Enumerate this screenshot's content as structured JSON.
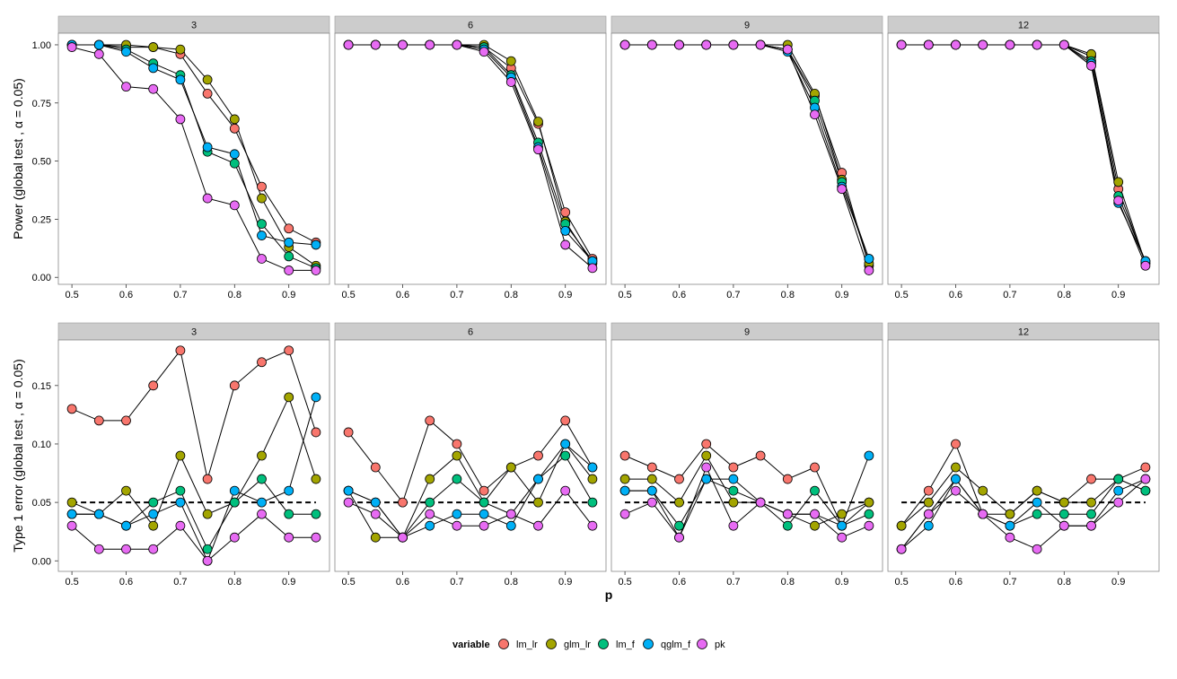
{
  "colors": {
    "lm_lr": "#F8766D",
    "glm_lr": "#A3A500",
    "lm_f": "#00BF7D",
    "qglm_f": "#00B0F6",
    "pk": "#E76BF3",
    "strip": "#cccccc"
  },
  "legend": {
    "title": "variable",
    "items": [
      {
        "key": "lm_lr",
        "label": "lm_lr"
      },
      {
        "key": "glm_lr",
        "label": "glm_lr"
      },
      {
        "key": "lm_f",
        "label": "lm_f"
      },
      {
        "key": "qglm_f",
        "label": "qglm_f"
      },
      {
        "key": "pk",
        "label": "pk"
      }
    ]
  },
  "xlabel": "p",
  "chart_data": [
    {
      "type": "line",
      "row": "power",
      "ylabel": "Power (global test , α = 0.05)",
      "ylim": [
        -0.03,
        1.05
      ],
      "yticks": [
        0.0,
        0.25,
        0.5,
        0.75,
        1.0
      ],
      "ytick_labels": [
        "0.00",
        "0.25",
        "0.50",
        "0.75",
        "1.00"
      ],
      "xlim": [
        0.475,
        0.975
      ],
      "xticks": [
        0.5,
        0.6,
        0.7,
        0.8,
        0.9
      ],
      "xtick_labels": [
        "0.5",
        "0.6",
        "0.7",
        "0.8",
        "0.9"
      ],
      "x": [
        0.5,
        0.55,
        0.6,
        0.65,
        0.7,
        0.75,
        0.8,
        0.85,
        0.9,
        0.95
      ],
      "reference_line": null,
      "panels": [
        {
          "strip": "3",
          "series": [
            {
              "name": "lm_lr",
              "values": [
                1.0,
                1.0,
                0.99,
                0.99,
                0.96,
                0.79,
                0.64,
                0.39,
                0.21,
                0.15
              ]
            },
            {
              "name": "glm_lr",
              "values": [
                1.0,
                1.0,
                1.0,
                0.99,
                0.98,
                0.85,
                0.68,
                0.34,
                0.13,
                0.05
              ]
            },
            {
              "name": "lm_f",
              "values": [
                1.0,
                1.0,
                0.98,
                0.92,
                0.87,
                0.54,
                0.49,
                0.23,
                0.09,
                0.04
              ]
            },
            {
              "name": "qglm_f",
              "values": [
                1.0,
                1.0,
                0.97,
                0.9,
                0.85,
                0.56,
                0.53,
                0.18,
                0.15,
                0.14
              ]
            },
            {
              "name": "pk",
              "values": [
                0.99,
                0.96,
                0.82,
                0.81,
                0.68,
                0.34,
                0.31,
                0.08,
                0.03,
                0.03
              ]
            }
          ]
        },
        {
          "strip": "6",
          "series": [
            {
              "name": "lm_lr",
              "values": [
                1.0,
                1.0,
                1.0,
                1.0,
                1.0,
                0.99,
                0.9,
                0.66,
                0.28,
                0.08
              ]
            },
            {
              "name": "glm_lr",
              "values": [
                1.0,
                1.0,
                1.0,
                1.0,
                1.0,
                1.0,
                0.93,
                0.67,
                0.24,
                0.06
              ]
            },
            {
              "name": "lm_f",
              "values": [
                1.0,
                1.0,
                1.0,
                1.0,
                1.0,
                0.99,
                0.87,
                0.58,
                0.23,
                0.07
              ]
            },
            {
              "name": "qglm_f",
              "values": [
                1.0,
                1.0,
                1.0,
                1.0,
                1.0,
                0.98,
                0.86,
                0.56,
                0.2,
                0.07
              ]
            },
            {
              "name": "pk",
              "values": [
                1.0,
                1.0,
                1.0,
                1.0,
                1.0,
                0.97,
                0.84,
                0.55,
                0.14,
                0.04
              ]
            }
          ]
        },
        {
          "strip": "9",
          "series": [
            {
              "name": "lm_lr",
              "values": [
                1.0,
                1.0,
                1.0,
                1.0,
                1.0,
                1.0,
                0.98,
                0.78,
                0.45,
                0.05
              ]
            },
            {
              "name": "glm_lr",
              "values": [
                1.0,
                1.0,
                1.0,
                1.0,
                1.0,
                1.0,
                1.0,
                0.79,
                0.42,
                0.06
              ]
            },
            {
              "name": "lm_f",
              "values": [
                1.0,
                1.0,
                1.0,
                1.0,
                1.0,
                1.0,
                0.98,
                0.76,
                0.41,
                0.08
              ]
            },
            {
              "name": "qglm_f",
              "values": [
                1.0,
                1.0,
                1.0,
                1.0,
                1.0,
                1.0,
                0.97,
                0.73,
                0.39,
                0.08
              ]
            },
            {
              "name": "pk",
              "values": [
                1.0,
                1.0,
                1.0,
                1.0,
                1.0,
                1.0,
                0.98,
                0.7,
                0.38,
                0.03
              ]
            }
          ]
        },
        {
          "strip": "12",
          "series": [
            {
              "name": "lm_lr",
              "values": [
                1.0,
                1.0,
                1.0,
                1.0,
                1.0,
                1.0,
                1.0,
                0.95,
                0.38,
                0.06
              ]
            },
            {
              "name": "glm_lr",
              "values": [
                1.0,
                1.0,
                1.0,
                1.0,
                1.0,
                1.0,
                1.0,
                0.96,
                0.41,
                0.06
              ]
            },
            {
              "name": "lm_f",
              "values": [
                1.0,
                1.0,
                1.0,
                1.0,
                1.0,
                1.0,
                1.0,
                0.93,
                0.35,
                0.07
              ]
            },
            {
              "name": "qglm_f",
              "values": [
                1.0,
                1.0,
                1.0,
                1.0,
                1.0,
                1.0,
                1.0,
                0.92,
                0.32,
                0.07
              ]
            },
            {
              "name": "pk",
              "values": [
                1.0,
                1.0,
                1.0,
                1.0,
                1.0,
                1.0,
                1.0,
                0.91,
                0.33,
                0.05
              ]
            }
          ]
        }
      ]
    },
    {
      "type": "line",
      "row": "type1",
      "ylabel": "Type 1 error (global test , α = 0.05)",
      "ylim": [
        -0.009,
        0.189
      ],
      "yticks": [
        0.0,
        0.05,
        0.1,
        0.15
      ],
      "ytick_labels": [
        "0.00",
        "0.05",
        "0.10",
        "0.15"
      ],
      "xlim": [
        0.475,
        0.975
      ],
      "xticks": [
        0.5,
        0.6,
        0.7,
        0.8,
        0.9
      ],
      "xtick_labels": [
        "0.5",
        "0.6",
        "0.7",
        "0.8",
        "0.9"
      ],
      "x": [
        0.5,
        0.55,
        0.6,
        0.65,
        0.7,
        0.75,
        0.8,
        0.85,
        0.9,
        0.95
      ],
      "reference_line": 0.05,
      "panels": [
        {
          "strip": "3",
          "series": [
            {
              "name": "lm_lr",
              "values": [
                0.13,
                0.12,
                0.12,
                0.15,
                0.18,
                0.07,
                0.15,
                0.17,
                0.18,
                0.11
              ]
            },
            {
              "name": "glm_lr",
              "values": [
                0.05,
                0.04,
                0.06,
                0.03,
                0.09,
                0.04,
                0.05,
                0.09,
                0.14,
                0.07
              ]
            },
            {
              "name": "lm_f",
              "values": [
                0.04,
                0.04,
                0.03,
                0.05,
                0.06,
                0.01,
                0.05,
                0.07,
                0.04,
                0.04
              ]
            },
            {
              "name": "qglm_f",
              "values": [
                0.04,
                0.04,
                0.03,
                0.04,
                0.05,
                0.0,
                0.06,
                0.05,
                0.06,
                0.14
              ]
            },
            {
              "name": "pk",
              "values": [
                0.03,
                0.01,
                0.01,
                0.01,
                0.03,
                0.0,
                0.02,
                0.04,
                0.02,
                0.02
              ]
            }
          ]
        },
        {
          "strip": "6",
          "series": [
            {
              "name": "lm_lr",
              "values": [
                0.11,
                0.08,
                0.05,
                0.12,
                0.1,
                0.06,
                0.08,
                0.09,
                0.12,
                0.08
              ]
            },
            {
              "name": "glm_lr",
              "values": [
                0.06,
                0.02,
                0.02,
                0.07,
                0.09,
                0.05,
                0.08,
                0.05,
                0.1,
                0.07
              ]
            },
            {
              "name": "lm_f",
              "values": [
                0.06,
                0.05,
                0.02,
                0.05,
                0.07,
                0.05,
                0.04,
                0.07,
                0.09,
                0.05
              ]
            },
            {
              "name": "qglm_f",
              "values": [
                0.06,
                0.05,
                0.02,
                0.03,
                0.04,
                0.04,
                0.03,
                0.07,
                0.1,
                0.08
              ]
            },
            {
              "name": "pk",
              "values": [
                0.05,
                0.04,
                0.02,
                0.04,
                0.03,
                0.03,
                0.04,
                0.03,
                0.06,
                0.03
              ]
            }
          ]
        },
        {
          "strip": "9",
          "series": [
            {
              "name": "lm_lr",
              "values": [
                0.09,
                0.08,
                0.07,
                0.1,
                0.08,
                0.09,
                0.07,
                0.08,
                0.03,
                0.05
              ]
            },
            {
              "name": "glm_lr",
              "values": [
                0.07,
                0.07,
                0.05,
                0.09,
                0.05,
                0.05,
                0.04,
                0.03,
                0.04,
                0.05
              ]
            },
            {
              "name": "lm_f",
              "values": [
                0.06,
                0.06,
                0.03,
                0.07,
                0.06,
                0.05,
                0.03,
                0.06,
                0.03,
                0.04
              ]
            },
            {
              "name": "qglm_f",
              "values": [
                0.06,
                0.06,
                0.02,
                0.07,
                0.07,
                0.05,
                0.04,
                0.04,
                0.03,
                0.09
              ]
            },
            {
              "name": "pk",
              "values": [
                0.04,
                0.05,
                0.02,
                0.08,
                0.03,
                0.05,
                0.04,
                0.04,
                0.02,
                0.03
              ]
            }
          ]
        },
        {
          "strip": "12",
          "series": [
            {
              "name": "lm_lr",
              "values": [
                0.03,
                0.06,
                0.1,
                0.04,
                0.04,
                0.06,
                0.05,
                0.07,
                0.07,
                0.08
              ]
            },
            {
              "name": "glm_lr",
              "values": [
                0.03,
                0.05,
                0.08,
                0.06,
                0.04,
                0.06,
                0.05,
                0.05,
                0.07,
                0.06
              ]
            },
            {
              "name": "lm_f",
              "values": [
                0.01,
                0.04,
                0.07,
                0.04,
                0.03,
                0.04,
                0.04,
                0.04,
                0.07,
                0.06
              ]
            },
            {
              "name": "qglm_f",
              "values": [
                0.01,
                0.03,
                0.07,
                0.04,
                0.03,
                0.05,
                0.03,
                0.03,
                0.06,
                0.07
              ]
            },
            {
              "name": "pk",
              "values": [
                0.01,
                0.04,
                0.06,
                0.04,
                0.02,
                0.01,
                0.03,
                0.03,
                0.05,
                0.07
              ]
            }
          ]
        }
      ]
    }
  ]
}
